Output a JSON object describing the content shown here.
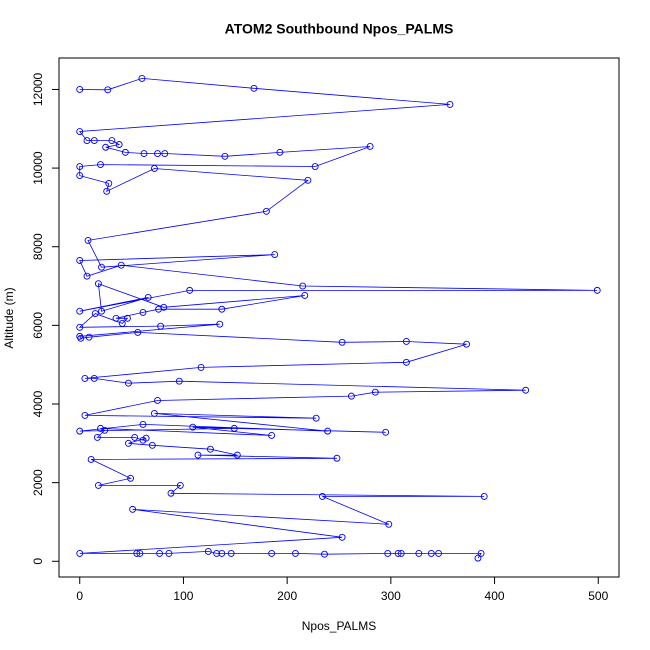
{
  "chart_data": {
    "type": "line",
    "markers": "circle",
    "title": "ATOM2 Southbound Npos_PALMS",
    "x_label": "Npos_PALMS",
    "y_label": "Altitude (m)",
    "xlim": [
      -20,
      520
    ],
    "ylim": [
      -400,
      12800
    ],
    "xticks": [
      0,
      100,
      200,
      300,
      400,
      500
    ],
    "yticks": [
      0,
      2000,
      4000,
      6000,
      8000,
      10000,
      12000
    ],
    "series": [
      {
        "color": "#0000ff",
        "x": [
          0,
          27,
          60,
          168,
          357,
          0,
          7,
          14,
          31,
          38,
          25,
          44,
          62,
          75,
          82,
          140,
          193,
          280,
          227,
          20,
          0,
          0,
          28,
          26,
          72,
          220,
          180,
          8,
          21,
          188,
          0,
          7,
          40,
          215,
          499,
          106,
          0,
          66,
          21,
          18,
          81,
          217,
          137,
          76,
          61,
          35,
          46,
          41,
          15,
          0,
          78,
          135,
          0,
          1,
          9,
          56,
          253,
          315,
          373,
          315,
          117,
          5,
          14,
          47,
          96,
          430,
          285,
          262,
          75,
          5,
          228,
          72,
          239,
          61,
          0,
          149,
          295,
          109,
          185,
          20,
          24,
          17,
          53,
          61,
          64,
          47,
          70,
          126,
          152,
          114,
          248,
          11,
          49,
          18,
          97,
          88,
          390,
          234,
          298,
          51,
          253,
          0,
          55,
          58,
          77,
          86,
          124,
          132,
          137,
          146,
          185,
          208,
          236,
          297,
          307,
          310,
          327,
          339,
          346,
          387,
          384
        ],
        "values": [
          12000,
          11990,
          12280,
          12030,
          11620,
          10930,
          10700,
          10700,
          10700,
          10600,
          10530,
          10400,
          10370,
          10370,
          10370,
          10300,
          10400,
          10550,
          10040,
          10090,
          10040,
          9810,
          9610,
          9410,
          9990,
          9690,
          8900,
          8160,
          7480,
          7800,
          7650,
          7250,
          7530,
          7000,
          6890,
          6890,
          6360,
          6710,
          6360,
          7060,
          6460,
          6760,
          6410,
          6410,
          6330,
          6180,
          6180,
          6050,
          6300,
          5950,
          5980,
          6030,
          5720,
          5670,
          5700,
          5820,
          5570,
          5590,
          5520,
          5060,
          4930,
          4650,
          4650,
          4530,
          4580,
          4350,
          4300,
          4200,
          4090,
          3710,
          3640,
          3760,
          3310,
          3480,
          3310,
          3380,
          3280,
          3410,
          3200,
          3380,
          3330,
          3150,
          3150,
          3080,
          3130,
          3000,
          2950,
          2850,
          2700,
          2700,
          2620,
          2590,
          2110,
          1930,
          1930,
          1730,
          1650,
          1650,
          940,
          1320,
          610,
          200,
          200,
          200,
          200,
          200,
          250,
          200,
          200,
          200,
          200,
          200,
          180,
          200,
          200,
          200,
          200,
          200,
          200,
          200,
          80
        ]
      }
    ]
  }
}
